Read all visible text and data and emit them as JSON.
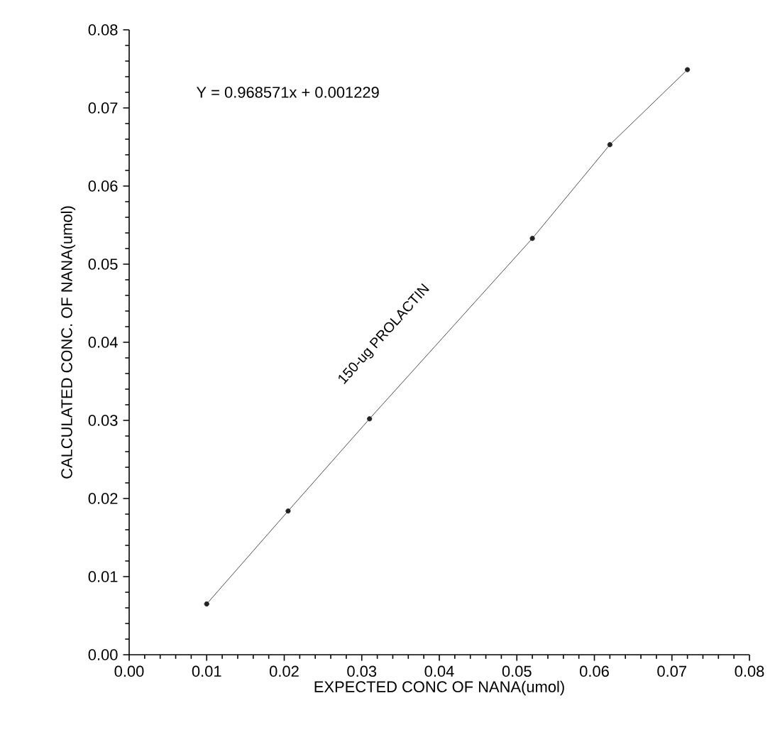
{
  "chart_data": {
    "type": "line",
    "xlabel": "EXPECTED CONC  OF NANA(umol)",
    "ylabel": "CALCULATED CONC. OF NANA(umol)",
    "annotations": [
      "Y = 0.968571x + 0.001229",
      "150-ug PROLACTIN"
    ],
    "x": [
      0.01,
      0.0205,
      0.031,
      0.052,
      0.062,
      0.072
    ],
    "series": [
      {
        "color": "#222222",
        "values": [
          0.0065,
          0.0184,
          0.0302,
          0.0533,
          0.0653,
          0.0749
        ]
      }
    ],
    "marker": "circle",
    "line_style": "solid",
    "grid": false,
    "xlim": [
      0,
      0.08
    ],
    "ylim": [
      0,
      0.08
    ],
    "xticks": [
      {
        "value": 0,
        "label": "0.00"
      },
      {
        "value": 0.01,
        "label": "0.01"
      },
      {
        "value": 0.02,
        "label": "0.02"
      },
      {
        "value": 0.03,
        "label": "0.03"
      },
      {
        "value": 0.04,
        "label": "0.04"
      },
      {
        "value": 0.05,
        "label": "0.05"
      },
      {
        "value": 0.06,
        "label": "0.06"
      },
      {
        "value": 0.07,
        "label": "0.07"
      },
      {
        "value": 0.08,
        "label": "0.08"
      }
    ],
    "yticks": [
      {
        "value": 0,
        "label": "0.00"
      },
      {
        "value": 0.01,
        "label": "0.01"
      },
      {
        "value": 0.02,
        "label": "0.02"
      },
      {
        "value": 0.03,
        "label": "0.03"
      },
      {
        "value": 0.04,
        "label": "0.04"
      },
      {
        "value": 0.05,
        "label": "0.05"
      },
      {
        "value": 0.06,
        "label": "0.06"
      },
      {
        "value": 0.07,
        "label": "0.07"
      },
      {
        "value": 0.08,
        "label": "0.08"
      }
    ]
  }
}
